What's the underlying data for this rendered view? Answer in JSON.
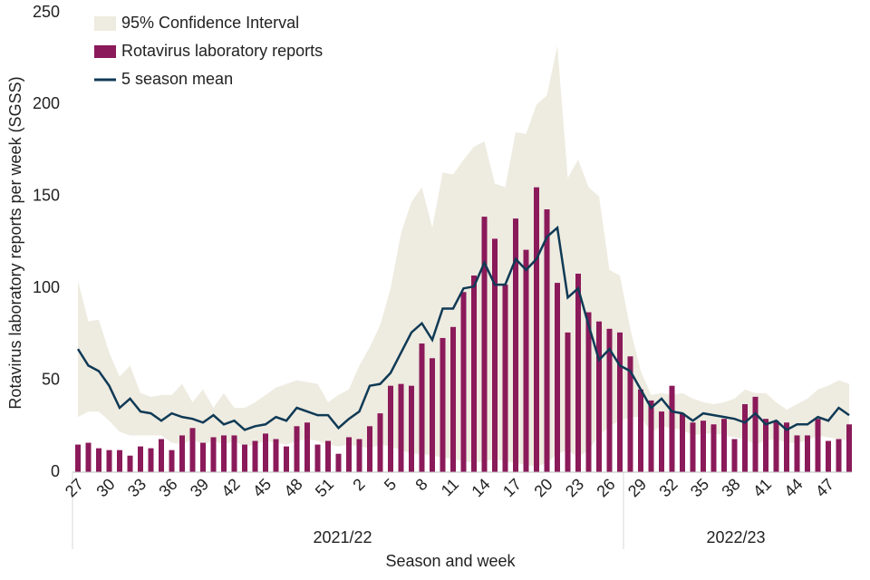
{
  "chart_data": {
    "type": "bar-line-band",
    "x_label": "Season and week",
    "y_label": "Rotavirus laboratory reports per week (SGSS)",
    "season_labels": [
      "2021/22",
      "2022/23"
    ],
    "categories": [
      "27",
      null,
      null,
      "30",
      null,
      null,
      "33",
      null,
      null,
      "36",
      null,
      null,
      "39",
      null,
      null,
      "42",
      null,
      null,
      "45",
      null,
      null,
      "48",
      null,
      null,
      "51",
      null,
      null,
      "2",
      null,
      null,
      "5",
      null,
      null,
      "8",
      null,
      null,
      "11",
      null,
      null,
      "14",
      null,
      null,
      "17",
      null,
      null,
      "20",
      null,
      null,
      "23",
      null,
      null,
      "26",
      null,
      null,
      "29",
      null,
      null,
      "32",
      null,
      null,
      "35",
      null,
      null,
      "38",
      null,
      null,
      "41",
      null,
      null,
      "44",
      null,
      null,
      "47",
      null,
      null
    ],
    "ylim": [
      0,
      250
    ],
    "yticks": [
      0,
      50,
      100,
      150,
      200,
      250
    ],
    "legend": "top-left",
    "series": [
      {
        "name": "95% Confidence Interval",
        "type": "band",
        "color": "#eeebe0",
        "upper": [
          104,
          82,
          83,
          65,
          52,
          58,
          43,
          41,
          42,
          42,
          48,
          38,
          45,
          35,
          43,
          35,
          35,
          38,
          42,
          46,
          48,
          50,
          49,
          48,
          38,
          42,
          45,
          58,
          68,
          80,
          100,
          130,
          147,
          155,
          133,
          163,
          162,
          170,
          177,
          180,
          157,
          155,
          185,
          184,
          200,
          205,
          232,
          160,
          170,
          155,
          150,
          110,
          107,
          78,
          55,
          42,
          43,
          42,
          43,
          40,
          38,
          37,
          38,
          40,
          45,
          43,
          43,
          38,
          34,
          37,
          40,
          45,
          47,
          50,
          48
        ],
        "lower": [
          30,
          33,
          33,
          28,
          22,
          20,
          20,
          20,
          20,
          16,
          15,
          18,
          15,
          17,
          15,
          17,
          14,
          15,
          17,
          16,
          15,
          17,
          18,
          17,
          15,
          14,
          15,
          14,
          13,
          15,
          14,
          12,
          10,
          10,
          9,
          8,
          7,
          6,
          5,
          6,
          7,
          6,
          5,
          4,
          3,
          5,
          10,
          12,
          8,
          12,
          20,
          25,
          28,
          30,
          30,
          22,
          25,
          24,
          23,
          20,
          21,
          21,
          20,
          19,
          18,
          15,
          17,
          18,
          16,
          16,
          17,
          20,
          19,
          18,
          17
        ]
      },
      {
        "name": "Rotavirus laboratory reports",
        "type": "bar",
        "color": "#8b1a5a",
        "values": [
          15,
          16,
          13,
          12,
          12,
          9,
          14,
          13,
          18,
          12,
          20,
          24,
          16,
          19,
          20,
          20,
          15,
          17,
          21,
          18,
          14,
          25,
          27,
          15,
          17,
          10,
          19,
          18,
          25,
          32,
          47,
          48,
          47,
          70,
          62,
          73,
          79,
          98,
          107,
          139,
          127,
          102,
          138,
          121,
          155,
          143,
          103,
          76,
          108,
          87,
          82,
          78,
          76,
          63,
          45,
          39,
          33,
          47,
          32,
          27,
          28,
          26,
          29,
          18,
          37,
          41,
          29,
          28,
          27,
          20,
          20,
          29,
          17,
          18,
          26
        ]
      },
      {
        "name": "5 season mean",
        "type": "line",
        "color": "#0f3a55",
        "values": [
          67,
          58,
          55,
          47,
          35,
          40,
          33,
          32,
          28,
          32,
          30,
          29,
          27,
          31,
          26,
          28,
          23,
          25,
          26,
          30,
          28,
          35,
          33,
          31,
          31,
          24,
          29,
          33,
          47,
          48,
          54,
          65,
          76,
          81,
          72,
          89,
          89,
          100,
          101,
          114,
          102,
          102,
          116,
          110,
          116,
          128,
          133,
          95,
          100,
          80,
          61,
          67,
          58,
          55,
          45,
          35,
          40,
          33,
          32,
          28,
          32,
          31,
          30,
          29,
          27,
          32,
          26,
          28,
          23,
          26,
          26,
          30,
          28,
          35,
          31
        ]
      }
    ]
  }
}
